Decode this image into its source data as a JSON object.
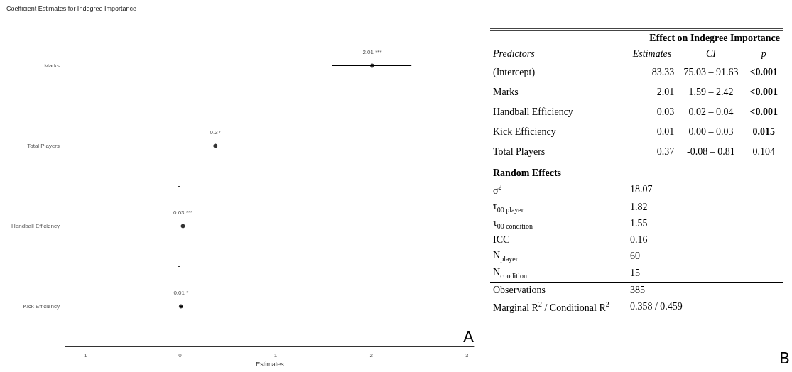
{
  "chart_data": [
    {
      "type": "scatter",
      "title": "Coefficient Estimates for Indegree Importance",
      "xlabel": "Estimates",
      "orientation": "horizontal",
      "categories": [
        "Marks",
        "Total Players",
        "Handball Efficiency",
        "Kick Efficiency"
      ],
      "values": [
        2.01,
        0.37,
        0.03,
        0.01
      ],
      "errors": [
        [
          1.59,
          2.42
        ],
        [
          -0.08,
          0.81
        ],
        [
          0.02,
          0.04
        ],
        [
          0.0,
          0.03
        ]
      ],
      "value_labels": [
        "2.01 ***",
        "0.37",
        "0.03 ***",
        "0.01 *"
      ],
      "color": "#000000",
      "marker": "circle",
      "xlim": [
        -1.2,
        3.08
      ],
      "xticks": [
        -1,
        0,
        1,
        2,
        3
      ],
      "grid": false,
      "ref_lines": [
        {
          "axis": "x",
          "value": 0,
          "label": null,
          "color": "#c9a3b5"
        }
      ],
      "annotations": [
        "A"
      ]
    },
    {
      "type": "other",
      "title": "Effect on Indegree Importance",
      "annotations": [
        "Predictors",
        "Estimates",
        "CI",
        "p",
        "(Intercept)",
        "83.33",
        "75.03 – 91.63",
        "<0.001",
        "Marks",
        "2.01",
        "1.59 – 2.42",
        "<0.001",
        "Handball Efficiency",
        "0.03",
        "0.02 – 0.04",
        "<0.001",
        "Kick Efficiency",
        "0.01",
        "0.00 – 0.03",
        "0.015",
        "Total Players",
        "0.37",
        "-0.08 – 0.81",
        "0.104",
        "Random Effects",
        "σ$^{2}$",
        "18.07",
        "τ$_{00 player}$",
        "1.82",
        "τ$_{00 condition}$",
        "1.55",
        "ICC",
        "0.16",
        "N$_{player}$",
        "60",
        "N$_{condition}$",
        "15",
        "Observations",
        "385",
        "Marginal R$^{2}$ / Conditional R$^{2}$",
        "0.358 / 0.459",
        "B"
      ]
    }
  ]
}
